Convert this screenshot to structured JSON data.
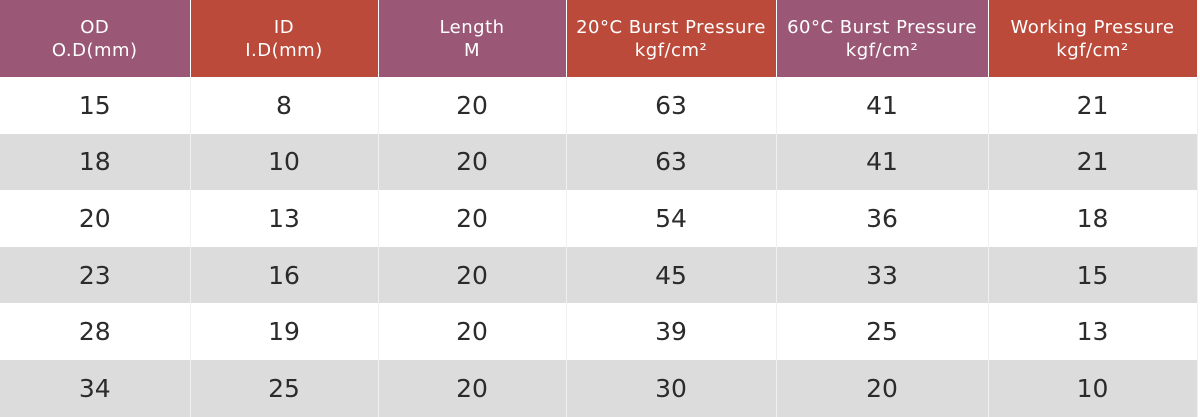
{
  "table": {
    "header": [
      [
        "OD",
        "O.D(mm)"
      ],
      [
        "ID",
        "I.D(mm)"
      ],
      [
        "Length",
        "M"
      ],
      [
        "20°C Burst Pressure",
        "kgf/cm²"
      ],
      [
        "60°C Burst Pressure",
        "kgf/cm²"
      ],
      [
        "Working Pressure",
        "kgf/cm²"
      ]
    ],
    "rows": [
      [
        15,
        8,
        20,
        63,
        41,
        21
      ],
      [
        18,
        10,
        20,
        63,
        41,
        21
      ],
      [
        20,
        13,
        20,
        54,
        36,
        18
      ],
      [
        23,
        16,
        20,
        45,
        33,
        15
      ],
      [
        28,
        19,
        20,
        39,
        25,
        13
      ],
      [
        34,
        25,
        20,
        30,
        20,
        10
      ]
    ]
  }
}
